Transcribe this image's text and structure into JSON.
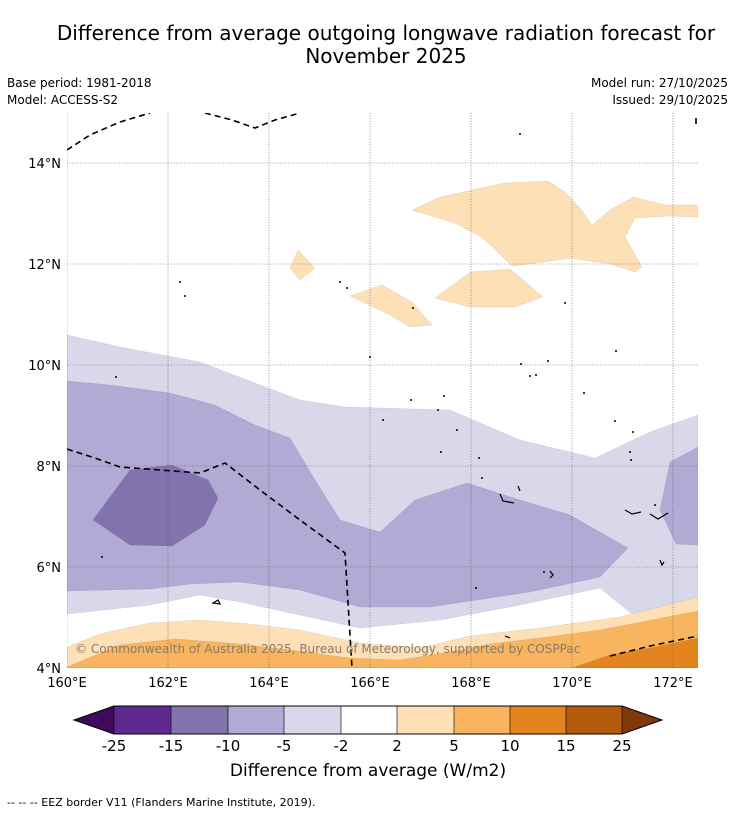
{
  "title": {
    "line1": "Difference from average outgoing longwave radiation forecast for",
    "line2": "November 2025"
  },
  "meta": {
    "base_period": "Base period: 1981-2018",
    "model": "Model: ACCESS-S2",
    "model_run": "Model run: 27/10/2025",
    "issued": "Issued: 29/10/2025"
  },
  "map": {
    "lon_range": [
      160,
      172.5
    ],
    "lat_range": [
      4,
      15
    ],
    "x_ticks": [
      "160°E",
      "162°E",
      "164°E",
      "166°E",
      "168°E",
      "170°E",
      "172°E"
    ],
    "y_ticks": [
      "4°N",
      "6°N",
      "8°N",
      "10°N",
      "12°N",
      "14°N"
    ],
    "copyright": "© Commonwealth of Australia 2025, Bureau of Meteorology, supported by COSPPac"
  },
  "colorbar": {
    "ticks": [
      "-25",
      "-15",
      "-10",
      "-5",
      "-2",
      "2",
      "5",
      "10",
      "15",
      "25"
    ],
    "label": "Difference from average (W/m2)",
    "colors": {
      "below_min": "#3f0a5c",
      "n25_n15": "#5e2a8f",
      "n15_n10": "#8272ae",
      "n10_n5": "#b0aad4",
      "n5_n2": "#d8d8ea",
      "n2_p2": "#ffffff",
      "p2_p5": "#fde0b5",
      "p5_p10": "#f9b45f",
      "p10_p15": "#e3841f",
      "p15_p25": "#b55a0c",
      "above_max": "#7e3a08"
    }
  },
  "footnote": "-- -- -- EEZ border V11 (Flanders Marine Institute, 2019)."
}
